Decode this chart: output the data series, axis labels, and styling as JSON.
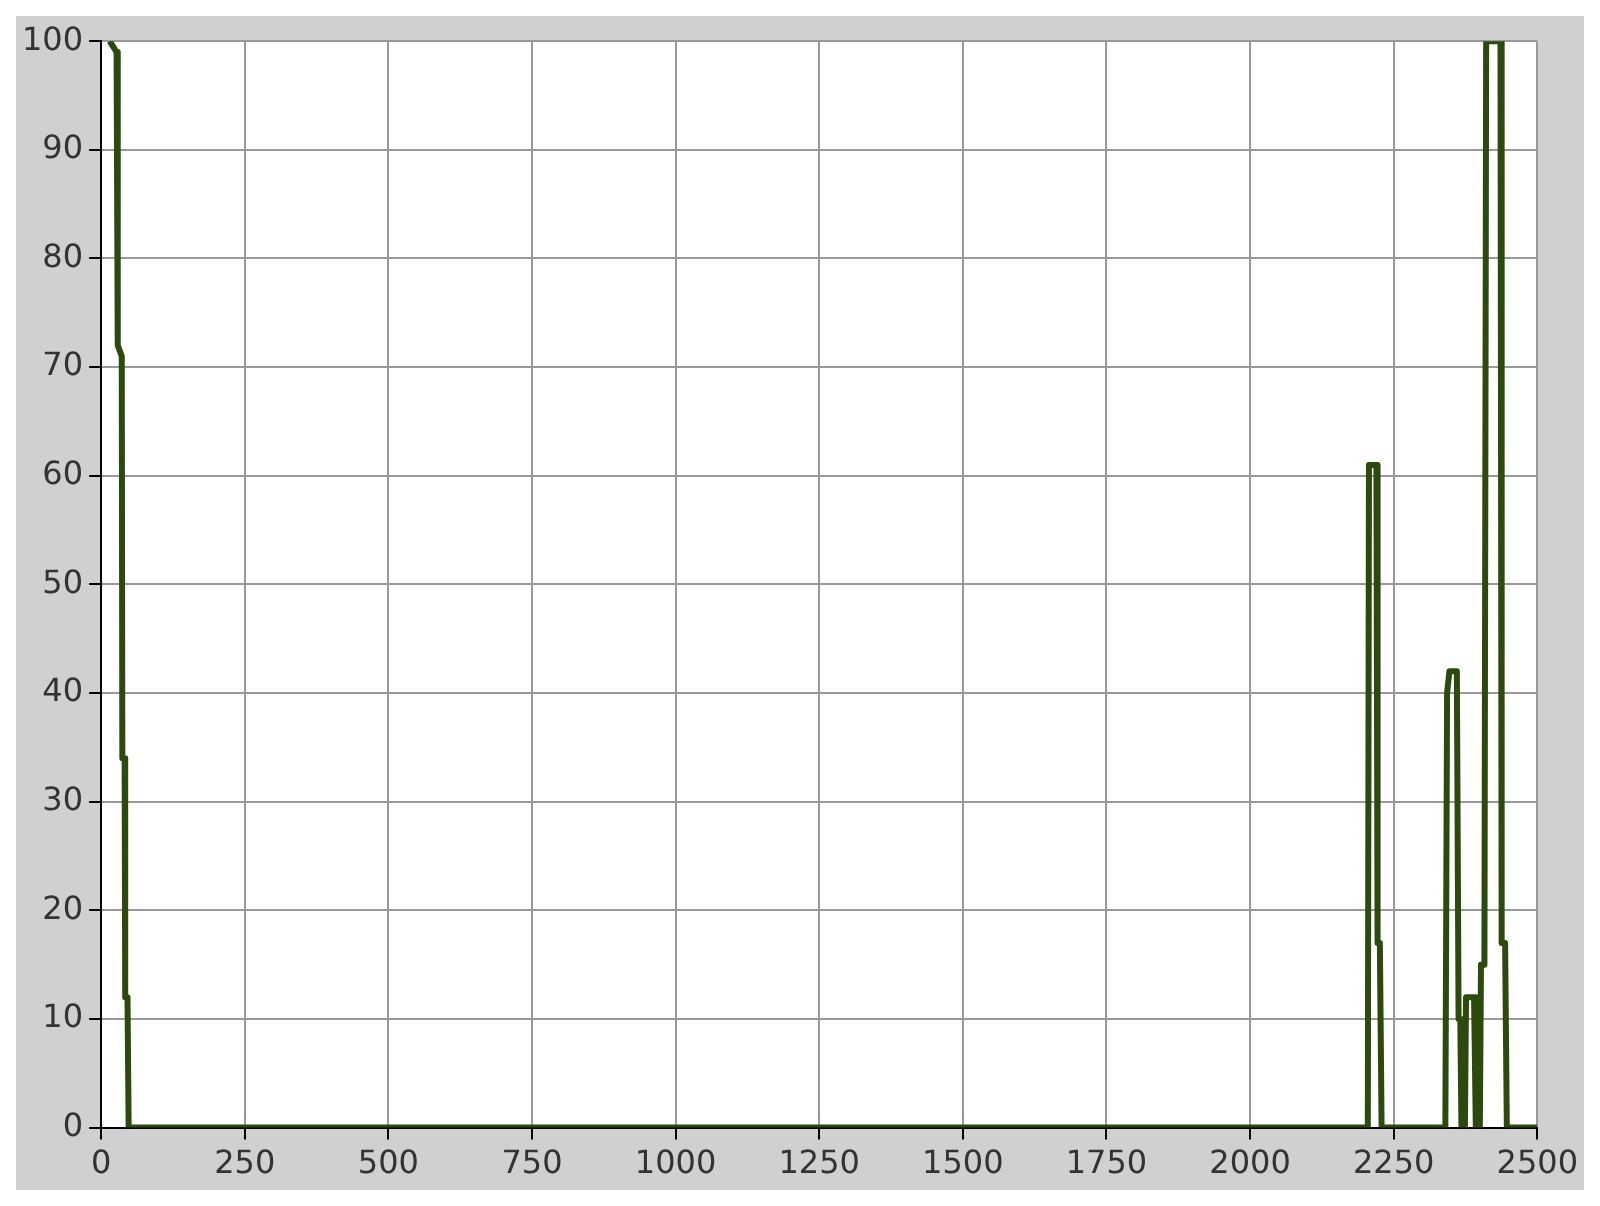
{
  "chart_data": {
    "type": "line",
    "x": [
      15,
      27,
      29,
      36,
      37,
      41,
      42,
      46,
      48,
      2205,
      2207,
      2220,
      2222,
      2226,
      2229,
      2340,
      2343,
      2347,
      2360,
      2363,
      2366,
      2368,
      2374,
      2376,
      2390,
      2393,
      2400,
      2402,
      2408,
      2411,
      2436,
      2438,
      2444,
      2447,
      2500
    ],
    "series": [
      {
        "color": "#2d4a0e",
        "values": [
          100,
          99,
          72,
          71,
          34,
          34,
          12,
          12,
          0,
          0,
          61,
          61,
          17,
          17,
          0,
          0,
          40,
          42,
          42,
          10,
          10,
          0,
          0,
          12,
          12,
          0,
          0,
          15,
          15,
          100,
          100,
          17,
          17,
          0,
          0
        ]
      }
    ],
    "xlim": [
      0,
      2500
    ],
    "xticks": [
      0,
      250,
      500,
      750,
      1000,
      1250,
      1500,
      1750,
      2000,
      2250,
      2500
    ],
    "ylim": [
      0,
      100
    ],
    "yticks": [
      0,
      10,
      20,
      30,
      40,
      50,
      60,
      70,
      80,
      90,
      100
    ],
    "grid": true,
    "legend": false,
    "marker": "none",
    "line_style": "solid"
  }
}
